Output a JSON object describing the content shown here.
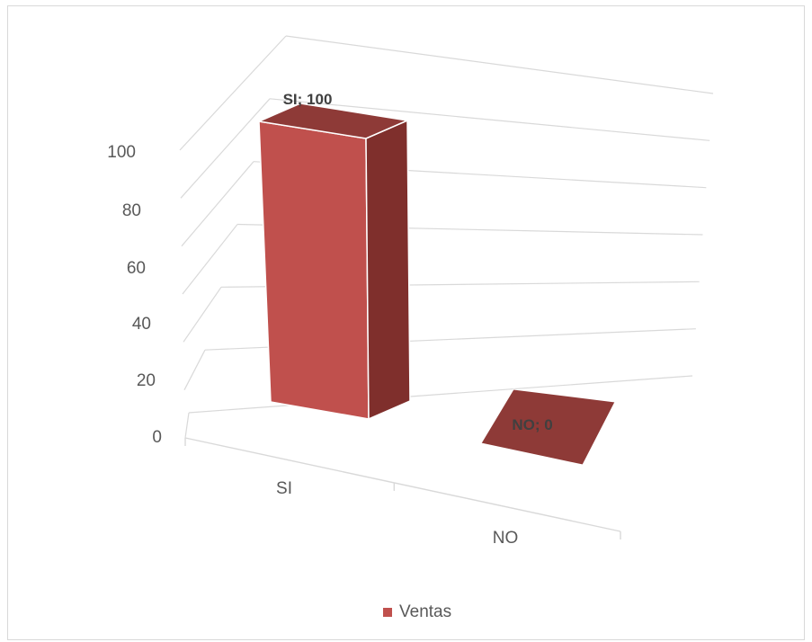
{
  "chart_data": {
    "type": "bar",
    "title": "",
    "xlabel": "",
    "ylabel": "",
    "categories": [
      "SI",
      "NO"
    ],
    "series": [
      {
        "name": "Ventas",
        "values": [
          100,
          0
        ]
      }
    ],
    "data_labels": [
      "SI; 100",
      "NO; 0"
    ],
    "y_ticks": [
      "0",
      "20",
      "40",
      "60",
      "80",
      "100"
    ],
    "ylim": [
      0,
      120
    ],
    "grid": true,
    "legend": "bottom",
    "three_d": true
  },
  "colors": {
    "front": "#c0504d",
    "side": "#7f2f2c",
    "top": "#8e3a37",
    "grid": "#d9d9d9",
    "text": "#595959"
  },
  "legend": {
    "label": "Ventas"
  }
}
